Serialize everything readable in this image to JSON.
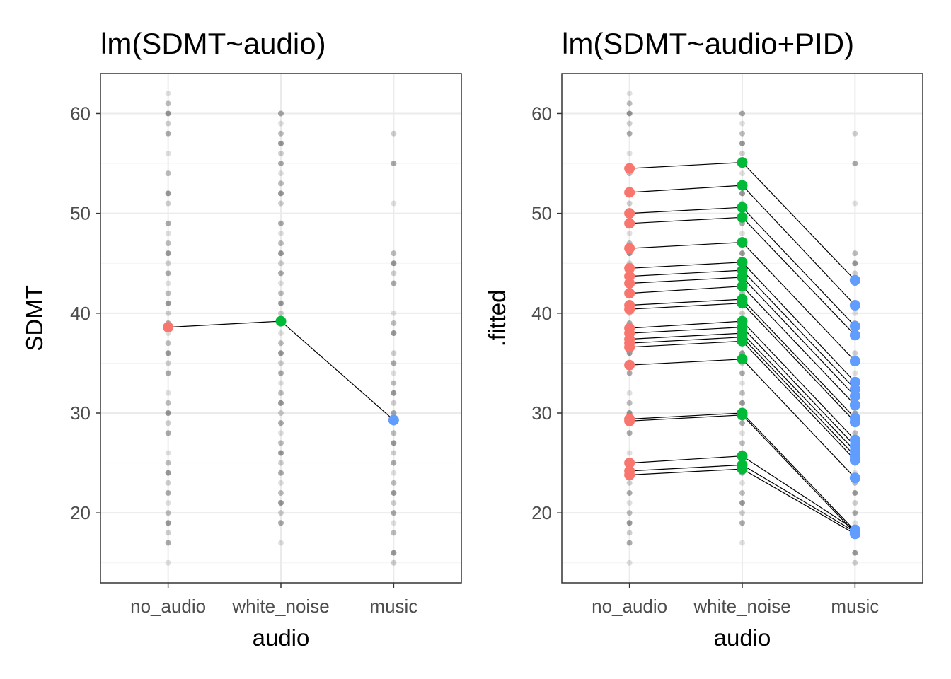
{
  "chart_data": [
    {
      "type": "scatter",
      "title": "lm(SDMT~audio)",
      "xlabel": "audio",
      "ylabel": "SDMT",
      "categories": [
        "no_audio",
        "white_noise",
        "music"
      ],
      "ylim": [
        13,
        64
      ],
      "yticks": [
        20,
        30,
        40,
        50,
        60
      ],
      "grid": true,
      "raw_points": {
        "color": "#000000",
        "values": [
          [
            62,
            61,
            60,
            59,
            58,
            56,
            54,
            52,
            51,
            49,
            48,
            47,
            46,
            45,
            44,
            43,
            42,
            41,
            40,
            39,
            38,
            37,
            36,
            35,
            34,
            32,
            31,
            30,
            29,
            28,
            26,
            25,
            24,
            23,
            22,
            21,
            20,
            19,
            18,
            17,
            15
          ],
          [
            60,
            59,
            58,
            57,
            56,
            55,
            54,
            53,
            52,
            51,
            49,
            48,
            47,
            46,
            45,
            44,
            43,
            42,
            41,
            40,
            39,
            38,
            37,
            36,
            35,
            34,
            33,
            32,
            31,
            30,
            29,
            28,
            27,
            26,
            25,
            24,
            23,
            22,
            21,
            20,
            19,
            17
          ],
          [
            58,
            55,
            51,
            46,
            45,
            44,
            43,
            40,
            39,
            38,
            36,
            35,
            34,
            33,
            32,
            31,
            30,
            29,
            28,
            27,
            26,
            25,
            24,
            23,
            22,
            21,
            20,
            19,
            18,
            16,
            15
          ]
        ]
      },
      "series": [
        {
          "group_colors": [
            "#F8766D",
            "#00BA38",
            "#619CFF"
          ],
          "lines": [
            [
              38.6,
              39.2,
              29.3
            ]
          ]
        }
      ]
    },
    {
      "type": "scatter",
      "title": "lm(SDMT~audio+PID)",
      "xlabel": "audio",
      "ylabel": ".fitted",
      "categories": [
        "no_audio",
        "white_noise",
        "music"
      ],
      "ylim": [
        13,
        64
      ],
      "yticks": [
        20,
        30,
        40,
        50,
        60
      ],
      "grid": true,
      "raw_points": {
        "color": "#000000",
        "values": [
          [
            62,
            61,
            60,
            59,
            58,
            56,
            54,
            52,
            51,
            49,
            48,
            47,
            46,
            45,
            44,
            43,
            42,
            41,
            40,
            39,
            38,
            37,
            36,
            35,
            34,
            32,
            31,
            30,
            29,
            28,
            26,
            25,
            24,
            23,
            22,
            21,
            20,
            19,
            18,
            17,
            15
          ],
          [
            60,
            59,
            58,
            57,
            56,
            55,
            54,
            53,
            52,
            51,
            49,
            48,
            47,
            46,
            45,
            44,
            43,
            42,
            41,
            40,
            39,
            38,
            37,
            36,
            35,
            34,
            33,
            32,
            31,
            30,
            29,
            28,
            27,
            26,
            25,
            24,
            23,
            22,
            21,
            20,
            19,
            17
          ],
          [
            58,
            55,
            51,
            46,
            45,
            44,
            43,
            40,
            39,
            38,
            36,
            35,
            34,
            33,
            32,
            31,
            30,
            29,
            28,
            27,
            26,
            25,
            24,
            23,
            22,
            21,
            20,
            19,
            18,
            16,
            15
          ]
        ]
      },
      "series": [
        {
          "group_colors": [
            "#F8766D",
            "#00BA38",
            "#619CFF"
          ],
          "lines": [
            [
              54.5,
              55.1,
              43.3
            ],
            [
              52.1,
              52.8,
              40.8
            ],
            [
              50.0,
              50.6,
              38.7
            ],
            [
              49.0,
              49.6,
              37.8
            ],
            [
              46.5,
              47.1,
              35.2
            ],
            [
              44.5,
              45.1,
              33.1
            ],
            [
              43.7,
              44.3,
              32.4
            ],
            [
              43.0,
              43.6,
              31.7
            ],
            [
              42.0,
              42.7,
              30.8
            ],
            [
              40.8,
              41.4,
              29.5
            ],
            [
              40.4,
              41.0,
              29.1
            ],
            [
              38.5,
              39.2,
              27.3
            ],
            [
              38.0,
              38.6,
              26.7
            ],
            [
              37.4,
              38.0,
              26.2
            ],
            [
              37.0,
              37.6,
              25.7
            ],
            [
              36.6,
              37.2,
              25.3
            ],
            [
              34.8,
              35.4,
              23.5
            ],
            [
              29.4,
              30.0,
              18.2
            ],
            [
              29.2,
              29.8,
              18.0
            ],
            [
              25.0,
              25.7,
              18.3
            ],
            [
              24.2,
              24.8,
              18.1
            ],
            [
              23.8,
              24.4,
              17.9
            ]
          ]
        }
      ]
    }
  ]
}
